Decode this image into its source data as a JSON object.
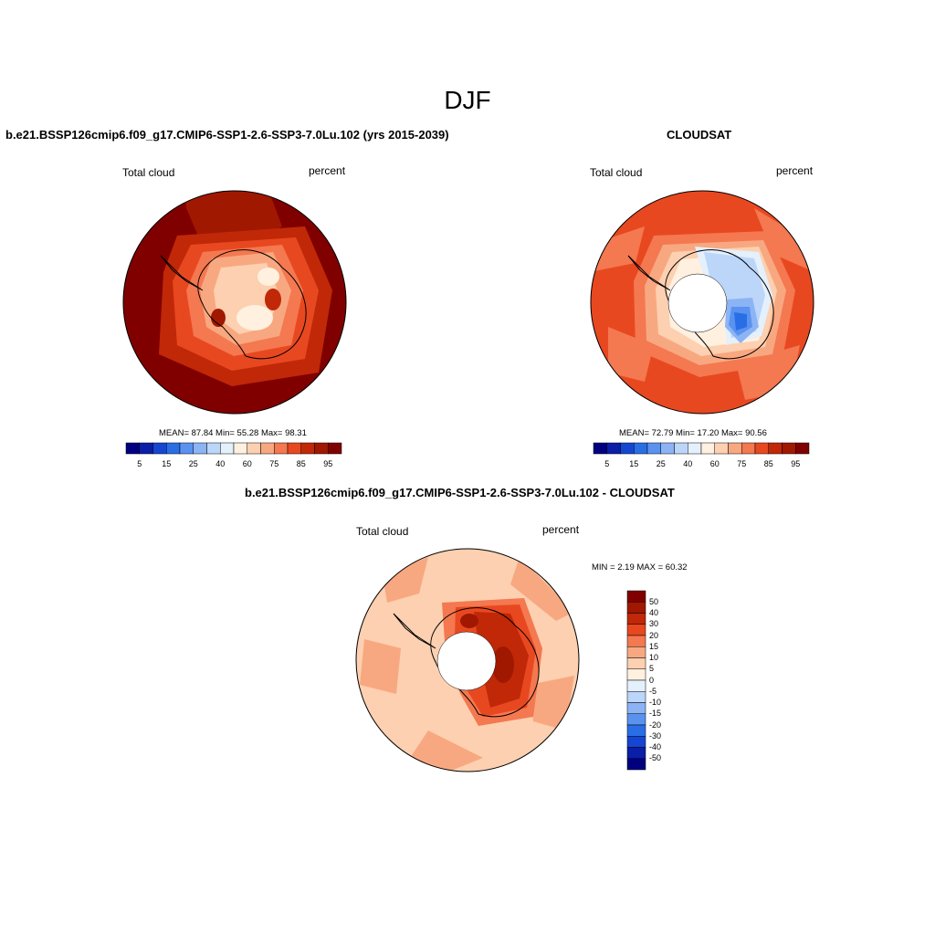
{
  "season": "DJF",
  "panels": [
    {
      "title": "b.e21.BSSP126cmip6.f09_g17.CMIP6-SSP1-2.6-SSP3-7.0Lu.102 (yrs 2015-2039)",
      "left_label": "Total cloud",
      "right_label": "percent",
      "stats": "MEAN=  87.84  Min=  55.28  Max=  98.31",
      "colorbar_labels": [
        "5",
        "15",
        "25",
        "40",
        "60",
        "75",
        "85",
        "95"
      ]
    },
    {
      "title": "CLOUDSAT",
      "left_label": "Total cloud",
      "right_label": "percent",
      "stats": "MEAN=  72.79  Min=  17.20  Max=  90.56",
      "colorbar_labels": [
        "5",
        "15",
        "25",
        "40",
        "60",
        "75",
        "85",
        "95"
      ]
    },
    {
      "title": "b.e21.BSSP126cmip6.f09_g17.CMIP6-SSP1-2.6-SSP3-7.0Lu.102 - CLOUDSAT",
      "left_label": "Total cloud",
      "right_label": "percent",
      "stats": "MIN =   2.19 MAX =  60.32",
      "colorbar_labels": [
        "50",
        "40",
        "30",
        "20",
        "15",
        "10",
        "5",
        "0",
        "-5",
        "-10",
        "-15",
        "-20",
        "-30",
        "-40",
        "-50"
      ]
    }
  ],
  "chart_data": [
    {
      "type": "heatmap",
      "projection": "south-polar-stereographic",
      "title": "b.e21.BSSP126cmip6.f09_g17.CMIP6-SSP1-2.6-SSP3-7.0Lu.102 (yrs 2015-2039)",
      "variable": "Total cloud",
      "units": "percent",
      "mean": 87.84,
      "min": 55.28,
      "max": 98.31,
      "levels": [
        5,
        10,
        15,
        20,
        25,
        30,
        40,
        50,
        60,
        65,
        75,
        80,
        85,
        90,
        95
      ],
      "colors": [
        "#000080",
        "#0a1ea8",
        "#1546d2",
        "#2a6ee6",
        "#5a92f0",
        "#8cb4f5",
        "#bcd6fa",
        "#e4f0fc",
        "#fff0e0",
        "#fcd0b0",
        "#f8a880",
        "#f47850",
        "#e84820",
        "#c02808",
        "#a01800",
        "#800000"
      ]
    },
    {
      "type": "heatmap",
      "projection": "south-polar-stereographic",
      "title": "CLOUDSAT",
      "variable": "Total cloud",
      "units": "percent",
      "mean": 72.79,
      "min": 17.2,
      "max": 90.56,
      "levels": [
        5,
        10,
        15,
        20,
        25,
        30,
        40,
        50,
        60,
        65,
        75,
        80,
        85,
        90,
        95
      ],
      "colors": [
        "#000080",
        "#0a1ea8",
        "#1546d2",
        "#2a6ee6",
        "#5a92f0",
        "#8cb4f5",
        "#bcd6fa",
        "#e4f0fc",
        "#fff0e0",
        "#fcd0b0",
        "#f8a880",
        "#f47850",
        "#e84820",
        "#c02808",
        "#a01800",
        "#800000"
      ]
    },
    {
      "type": "heatmap",
      "projection": "south-polar-stereographic",
      "title": "b.e21.BSSP126cmip6.f09_g17.CMIP6-SSP1-2.6-SSP3-7.0Lu.102 - CLOUDSAT",
      "variable": "Total cloud",
      "units": "percent",
      "min": 2.19,
      "max": 60.32,
      "levels": [
        -50,
        -40,
        -30,
        -20,
        -15,
        -10,
        -5,
        0,
        5,
        10,
        15,
        20,
        30,
        40,
        50
      ],
      "colors": [
        "#000080",
        "#0a1ea8",
        "#1546d2",
        "#2a6ee6",
        "#5a92f0",
        "#8cb4f5",
        "#bcd6fa",
        "#e4f0fc",
        "#fff0e0",
        "#fcd0b0",
        "#f8a880",
        "#f47850",
        "#e84820",
        "#c02808",
        "#a01800",
        "#800000"
      ]
    }
  ]
}
